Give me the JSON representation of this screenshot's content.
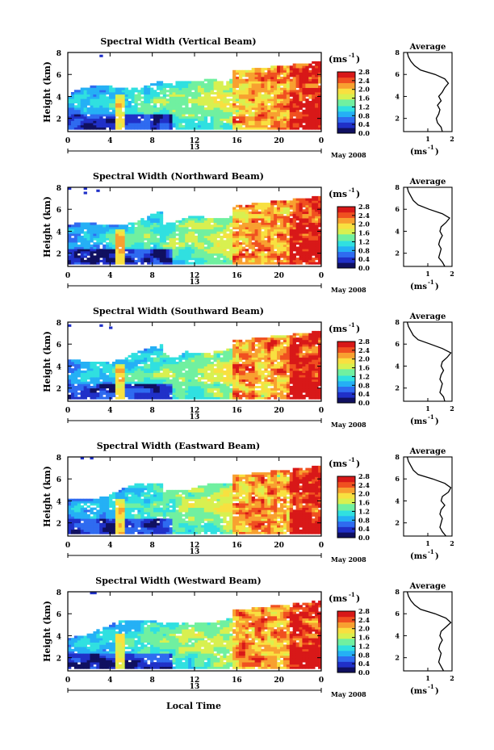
{
  "figure": {
    "xlabel": "Local Time",
    "colorbar_unit": "(ms",
    "colorbar_unit_exp": "-1",
    "colorbar_unit_close": ")",
    "date_label": "May 2008",
    "day_label": "13",
    "avg_title": "Average",
    "avg_xlabel": "(ms",
    "avg_xlabel_exp": "-1",
    "avg_xlabel_close": ")"
  },
  "chart_data": [
    {
      "type": "heatmap",
      "title": "Spectral Width (Vertical Beam)",
      "ylabel": "Height (km)",
      "xlabel": "Local Time",
      "x_ticks": [
        "0",
        "4",
        "8",
        "12",
        "16",
        "20",
        "0"
      ],
      "y_ticks": [
        "2",
        "4",
        "6",
        "8"
      ],
      "xlim": [
        0,
        24
      ],
      "ylim": [
        0.8,
        8.0
      ],
      "colorbar_ticks": [
        "0.0",
        "0.4",
        "0.8",
        "1.2",
        "1.6",
        "2.0",
        "2.4",
        "2.8"
      ],
      "colorbar_range": [
        0.0,
        2.8
      ],
      "colormap": [
        "#101060",
        "#2030c8",
        "#2f6bf0",
        "#25b0f5",
        "#30e0e0",
        "#70f0a0",
        "#d8f050",
        "#f8e040",
        "#f8a030",
        "#f05020",
        "#d81818"
      ],
      "average_profile": {
        "xlim": [
          0.0,
          2.0
        ],
        "x_ticks": [
          "1",
          "2"
        ],
        "ylim": [
          0.8,
          8.0
        ],
        "height_km": [
          0.8,
          1.2,
          1.6,
          2.0,
          2.4,
          2.8,
          3.2,
          3.6,
          4.0,
          4.4,
          4.8,
          5.2,
          5.6,
          6.0,
          6.4,
          6.8,
          7.2,
          7.6,
          8.0
        ],
        "width_ms": [
          1.6,
          1.55,
          1.4,
          1.35,
          1.45,
          1.5,
          1.4,
          1.55,
          1.45,
          1.6,
          1.7,
          1.85,
          1.7,
          1.3,
          0.7,
          0.45,
          0.3,
          0.2,
          0.15
        ]
      }
    },
    {
      "type": "heatmap",
      "title": "Spectral Width (Northward Beam)",
      "ylabel": "Height (km)",
      "xlabel": "Local Time",
      "x_ticks": [
        "0",
        "4",
        "8",
        "12",
        "16",
        "20",
        "0"
      ],
      "y_ticks": [
        "2",
        "4",
        "6",
        "8"
      ],
      "xlim": [
        0,
        24
      ],
      "ylim": [
        0.8,
        8.0
      ],
      "colorbar_ticks": [
        "0.0",
        "0.4",
        "0.8",
        "1.2",
        "1.6",
        "2.0",
        "2.4",
        "2.8"
      ],
      "colorbar_range": [
        0.0,
        2.8
      ],
      "colormap": [
        "#101060",
        "#2030c8",
        "#2f6bf0",
        "#25b0f5",
        "#30e0e0",
        "#70f0a0",
        "#d8f050",
        "#f8e040",
        "#f8a030",
        "#f05020",
        "#d81818"
      ],
      "average_profile": {
        "xlim": [
          0.0,
          2.0
        ],
        "x_ticks": [
          "1",
          "2"
        ],
        "ylim": [
          0.8,
          8.0
        ],
        "height_km": [
          0.8,
          1.2,
          1.6,
          2.0,
          2.4,
          2.8,
          3.2,
          3.6,
          4.0,
          4.4,
          4.8,
          5.2,
          5.6,
          6.0,
          6.4,
          6.8,
          7.2,
          7.6,
          8.0
        ],
        "width_ms": [
          1.7,
          1.6,
          1.45,
          1.5,
          1.55,
          1.45,
          1.5,
          1.6,
          1.5,
          1.55,
          1.75,
          1.9,
          1.6,
          1.05,
          0.6,
          0.4,
          0.3,
          0.2,
          0.15
        ]
      }
    },
    {
      "type": "heatmap",
      "title": "Spectral Width (Southward Beam)",
      "ylabel": "Height (km)",
      "xlabel": "Local Time",
      "x_ticks": [
        "0",
        "4",
        "8",
        "12",
        "16",
        "20",
        "0"
      ],
      "y_ticks": [
        "2",
        "4",
        "6",
        "8"
      ],
      "xlim": [
        0,
        24
      ],
      "ylim": [
        0.8,
        8.0
      ],
      "colorbar_ticks": [
        "0.0",
        "0.4",
        "0.8",
        "1.2",
        "1.6",
        "2.0",
        "2.4",
        "2.8"
      ],
      "colorbar_range": [
        0.0,
        2.8
      ],
      "colormap": [
        "#101060",
        "#2030c8",
        "#2f6bf0",
        "#25b0f5",
        "#30e0e0",
        "#70f0a0",
        "#d8f050",
        "#f8e040",
        "#f8a030",
        "#f05020",
        "#d81818"
      ],
      "average_profile": {
        "xlim": [
          0.0,
          2.0
        ],
        "x_ticks": [
          "1",
          "2"
        ],
        "ylim": [
          0.8,
          8.0
        ],
        "height_km": [
          0.8,
          1.2,
          1.6,
          2.0,
          2.4,
          2.8,
          3.2,
          3.6,
          4.0,
          4.4,
          4.8,
          5.2,
          5.6,
          6.0,
          6.4,
          6.8,
          7.2,
          7.6,
          8.0
        ],
        "width_ms": [
          1.7,
          1.65,
          1.5,
          1.55,
          1.6,
          1.5,
          1.55,
          1.65,
          1.55,
          1.6,
          1.8,
          1.95,
          1.6,
          1.1,
          0.6,
          0.4,
          0.3,
          0.2,
          0.15
        ]
      }
    },
    {
      "type": "heatmap",
      "title": "Spectral Width (Eastward Beam)",
      "ylabel": "Height (km)",
      "xlabel": "Local Time",
      "x_ticks": [
        "0",
        "4",
        "8",
        "12",
        "16",
        "20",
        "0"
      ],
      "y_ticks": [
        "2",
        "4",
        "6",
        "8"
      ],
      "xlim": [
        0,
        24
      ],
      "ylim": [
        0.8,
        8.0
      ],
      "colorbar_ticks": [
        "0.0",
        "0.4",
        "0.8",
        "1.2",
        "1.6",
        "2.0",
        "2.4",
        "2.8"
      ],
      "colorbar_range": [
        0.0,
        2.8
      ],
      "colormap": [
        "#101060",
        "#2030c8",
        "#2f6bf0",
        "#25b0f5",
        "#30e0e0",
        "#70f0a0",
        "#d8f050",
        "#f8e040",
        "#f8a030",
        "#f05020",
        "#d81818"
      ],
      "average_profile": {
        "xlim": [
          0.0,
          2.0
        ],
        "x_ticks": [
          "1",
          "2"
        ],
        "ylim": [
          0.8,
          8.0
        ],
        "height_km": [
          0.8,
          1.2,
          1.6,
          2.0,
          2.4,
          2.8,
          3.2,
          3.6,
          4.0,
          4.4,
          4.8,
          5.2,
          5.6,
          6.0,
          6.4,
          6.8,
          7.2,
          7.6,
          8.0
        ],
        "width_ms": [
          1.75,
          1.6,
          1.5,
          1.55,
          1.6,
          1.5,
          1.55,
          1.7,
          1.55,
          1.6,
          1.85,
          1.95,
          1.7,
          1.2,
          0.6,
          0.4,
          0.3,
          0.2,
          0.15
        ]
      }
    },
    {
      "type": "heatmap",
      "title": "Spectral Width (Westward Beam)",
      "ylabel": "Height (km)",
      "xlabel": "Local Time",
      "x_ticks": [
        "0",
        "4",
        "8",
        "12",
        "16",
        "20",
        "0"
      ],
      "y_ticks": [
        "2",
        "4",
        "6",
        "8"
      ],
      "xlim": [
        0,
        24
      ],
      "ylim": [
        0.8,
        8.0
      ],
      "colorbar_ticks": [
        "0.0",
        "0.4",
        "0.8",
        "1.2",
        "1.6",
        "2.0",
        "2.4",
        "2.8"
      ],
      "colorbar_range": [
        0.0,
        2.8
      ],
      "colormap": [
        "#101060",
        "#2030c8",
        "#2f6bf0",
        "#25b0f5",
        "#30e0e0",
        "#70f0a0",
        "#d8f050",
        "#f8e040",
        "#f8a030",
        "#f05020",
        "#d81818"
      ],
      "average_profile": {
        "xlim": [
          0.0,
          2.0
        ],
        "x_ticks": [
          "1",
          "2"
        ],
        "ylim": [
          0.8,
          8.0
        ],
        "height_km": [
          0.8,
          1.2,
          1.6,
          2.0,
          2.4,
          2.8,
          3.2,
          3.6,
          4.0,
          4.4,
          4.8,
          5.2,
          5.6,
          6.0,
          6.4,
          6.8,
          7.2,
          7.6,
          8.0
        ],
        "width_ms": [
          1.65,
          1.55,
          1.45,
          1.5,
          1.55,
          1.45,
          1.5,
          1.6,
          1.5,
          1.55,
          1.75,
          1.95,
          1.75,
          1.3,
          0.7,
          0.45,
          0.3,
          0.2,
          0.15
        ]
      }
    }
  ]
}
